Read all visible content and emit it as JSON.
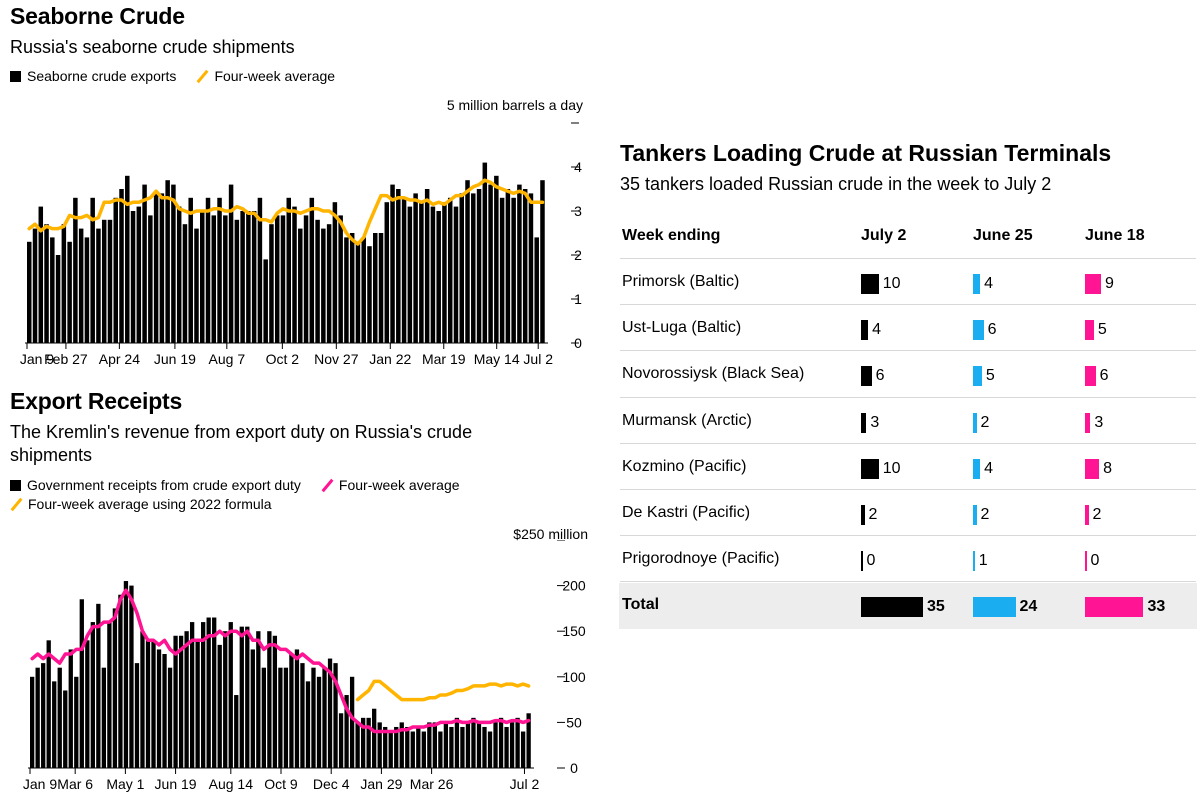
{
  "chart1": {
    "title": "Seaborne Crude",
    "subtitle": "Russia's seaborne crude shipments",
    "legend": [
      {
        "label": "Seaborne crude exports",
        "swatch": "square",
        "color": "#000000"
      },
      {
        "label": "Four-week average",
        "swatch": "slash",
        "color": "#ffb400"
      }
    ],
    "unit_label": "5 million barrels a day",
    "y_ticks": [
      "4",
      "3",
      "2",
      "1",
      "0"
    ],
    "x_ticks": [
      "Jan 9",
      "Feb 27",
      "Apr 24",
      "Jun 19",
      "Aug 7",
      "Oct 2",
      "Nov 27",
      "Jan 22",
      "Mar 19",
      "May 14",
      "Jul 2"
    ]
  },
  "chart2": {
    "title": "Export Receipts",
    "subtitle": "The Kremlin's revenue from export duty on Russia's crude shipments",
    "legend": [
      {
        "label": "Government receipts from crude export duty",
        "swatch": "square",
        "color": "#000000"
      },
      {
        "label": "Four-week average",
        "swatch": "slash",
        "color": "#ff1493"
      },
      {
        "label": "Four-week average using 2022 formula",
        "swatch": "slash",
        "color": "#ffb400"
      }
    ],
    "unit_label": "$250 million",
    "y_ticks": [
      "200",
      "150",
      "100",
      "50",
      "0"
    ],
    "x_ticks": [
      "Jan 9",
      "Mar 6",
      "May 1",
      "Jun 19",
      "Aug 14",
      "Oct 9",
      "Dec 4",
      "Jan 29",
      "Mar 26",
      "Jul 2"
    ]
  },
  "chart_data": [
    {
      "type": "bar",
      "title": "Seaborne Crude",
      "subtitle": "Russia's seaborne crude shipments",
      "ylabel": "5 million barrels a day",
      "ylim": [
        0,
        5
      ],
      "x_tick_labels": [
        "Jan 9",
        "Feb 27",
        "Apr 24",
        "Jun 19",
        "Aug 7",
        "Oct 2",
        "Nov 27",
        "Jan 22",
        "Mar 19",
        "May 14",
        "Jul 2"
      ],
      "series": [
        {
          "name": "Seaborne crude exports",
          "color": "#000000",
          "values": [
            2.3,
            2.6,
            3.1,
            2.7,
            2.4,
            2.0,
            2.7,
            2.3,
            3.3,
            2.6,
            2.4,
            3.3,
            2.6,
            2.8,
            2.8,
            3.3,
            3.5,
            3.8,
            3.0,
            3.1,
            3.6,
            2.9,
            3.4,
            3.4,
            3.7,
            3.6,
            3.1,
            2.7,
            3.3,
            2.6,
            3.0,
            3.3,
            2.9,
            3.3,
            2.9,
            3.6,
            2.8,
            3.0,
            3.0,
            3.0,
            3.3,
            1.9,
            2.7,
            2.9,
            2.9,
            3.3,
            3.1,
            2.6,
            2.9,
            3.3,
            2.8,
            2.6,
            2.7,
            3.2,
            2.9,
            2.4,
            2.5,
            2.3,
            2.4,
            2.2,
            2.5,
            2.5,
            3.2,
            3.6,
            3.5,
            3.3,
            3.1,
            3.4,
            3.2,
            3.5,
            3.1,
            3.0,
            3.2,
            3.3,
            3.1,
            3.4,
            3.7,
            3.4,
            3.5,
            4.1,
            3.6,
            3.8,
            3.3,
            3.5,
            3.3,
            3.6,
            3.5,
            3.4,
            2.4,
            3.7
          ]
        },
        {
          "name": "Four-week average",
          "color": "#ffb400",
          "values": [
            2.6,
            2.7,
            2.55,
            2.65,
            2.6,
            2.6,
            2.65,
            2.9,
            2.85,
            2.85,
            2.9,
            2.8,
            2.85,
            3.2,
            3.2,
            3.25,
            3.25,
            3.15,
            3.2,
            3.2,
            3.25,
            3.3,
            3.45,
            3.3,
            3.3,
            3.25,
            3.05,
            3.0,
            2.95,
            3.0,
            3.0,
            3.0,
            3.05,
            3.05,
            3.0,
            3.0,
            3.1,
            3.05,
            2.95,
            2.95,
            2.8,
            2.8,
            2.75,
            2.95,
            3.05,
            3.0,
            3.0,
            2.95,
            3.0,
            3.05,
            3.05,
            3.0,
            3.0,
            2.9,
            2.75,
            2.5,
            2.35,
            2.25,
            2.4,
            2.75,
            3.05,
            3.35,
            3.35,
            3.25,
            3.3,
            3.3,
            3.25,
            3.25,
            3.2,
            3.25,
            3.15,
            3.2,
            3.15,
            3.25,
            3.35,
            3.35,
            3.45,
            3.55,
            3.6,
            3.7,
            3.65,
            3.55,
            3.5,
            3.45,
            3.4,
            3.45,
            3.4,
            3.2,
            3.2,
            3.2
          ]
        }
      ]
    },
    {
      "type": "bar",
      "title": "Export Receipts",
      "subtitle": "The Kremlin's revenue from export duty on Russia's crude shipments",
      "ylabel": "$250 million",
      "ylim": [
        0,
        250
      ],
      "x_tick_labels": [
        "Jan 9",
        "Mar 6",
        "May 1",
        "Jun 19",
        "Aug 14",
        "Oct 9",
        "Dec 4",
        "Jan 29",
        "Mar 26",
        "Jul 2"
      ],
      "series": [
        {
          "name": "Government receipts from crude export duty",
          "color": "#000000",
          "values": [
            100,
            110,
            115,
            140,
            95,
            110,
            85,
            130,
            100,
            185,
            140,
            160,
            180,
            110,
            160,
            175,
            190,
            205,
            200,
            115,
            150,
            140,
            140,
            130,
            125,
            110,
            145,
            145,
            150,
            160,
            140,
            160,
            165,
            165,
            135,
            150,
            160,
            80,
            155,
            155,
            130,
            150,
            110,
            150,
            145,
            110,
            110,
            125,
            130,
            115,
            95,
            110,
            100,
            110,
            120,
            115,
            60,
            80,
            100,
            50,
            55,
            55,
            65,
            50,
            45,
            40,
            45,
            50,
            45,
            40,
            45,
            40,
            50,
            50,
            40,
            50,
            45,
            55,
            45,
            50,
            55,
            50,
            45,
            40,
            50,
            55,
            45,
            50,
            55,
            40,
            60
          ]
        },
        {
          "name": "Four-week average",
          "color": "#ff1493",
          "values": [
            120,
            125,
            120,
            125,
            120,
            115,
            125,
            125,
            130,
            130,
            145,
            155,
            155,
            160,
            160,
            165,
            185,
            195,
            185,
            170,
            150,
            140,
            140,
            135,
            140,
            130,
            125,
            130,
            135,
            140,
            140,
            140,
            145,
            145,
            150,
            145,
            150,
            150,
            145,
            150,
            140,
            140,
            130,
            135,
            135,
            130,
            130,
            125,
            120,
            125,
            120,
            115,
            115,
            110,
            105,
            95,
            80,
            65,
            55,
            50,
            45,
            45,
            40,
            40,
            40,
            40,
            40,
            42,
            42,
            45,
            45,
            45,
            47,
            47,
            50,
            50,
            50,
            52,
            50,
            50,
            52,
            50,
            50,
            50,
            52,
            52,
            50,
            52,
            52,
            50,
            52
          ]
        },
        {
          "name": "Four-week average using 2022 formula",
          "color": "#ffb400",
          "values": [
            null,
            null,
            null,
            null,
            null,
            null,
            null,
            null,
            null,
            null,
            null,
            null,
            null,
            null,
            null,
            null,
            null,
            null,
            null,
            null,
            null,
            null,
            null,
            null,
            null,
            null,
            null,
            null,
            null,
            null,
            null,
            null,
            null,
            null,
            null,
            null,
            null,
            null,
            null,
            null,
            null,
            null,
            null,
            null,
            null,
            null,
            null,
            null,
            null,
            null,
            null,
            null,
            null,
            null,
            null,
            null,
            null,
            null,
            null,
            75,
            80,
            85,
            95,
            95,
            90,
            85,
            80,
            75,
            75,
            75,
            75,
            75,
            77,
            77,
            80,
            80,
            82,
            85,
            85,
            87,
            90,
            90,
            90,
            92,
            92,
            90,
            92,
            92,
            90,
            92,
            90
          ]
        }
      ]
    },
    {
      "type": "table",
      "title": "Tankers Loading Crude at Russian Terminals",
      "subtitle": "35 tankers loaded Russian crude in the week to July 2",
      "columns": [
        "Week ending",
        "July 2",
        "June 25",
        "June 18"
      ],
      "column_colors": [
        "#000000",
        "#1aaef0",
        "#ff1493"
      ],
      "rows": [
        {
          "label": "Primorsk (Baltic)",
          "values": [
            10,
            4,
            9
          ]
        },
        {
          "label": "Ust-Luga (Baltic)",
          "values": [
            4,
            6,
            5
          ]
        },
        {
          "label": "Novorossiysk (Black Sea)",
          "values": [
            6,
            5,
            6
          ]
        },
        {
          "label": "Murmansk (Arctic)",
          "values": [
            3,
            2,
            3
          ]
        },
        {
          "label": "Kozmino (Pacific)",
          "values": [
            10,
            4,
            8
          ]
        },
        {
          "label": "De Kastri (Pacific)",
          "values": [
            2,
            2,
            2
          ]
        },
        {
          "label": "Prigorodnoye (Pacific)",
          "values": [
            0,
            1,
            0
          ]
        }
      ],
      "total": {
        "label": "Total",
        "values": [
          35,
          24,
          33
        ]
      }
    }
  ]
}
